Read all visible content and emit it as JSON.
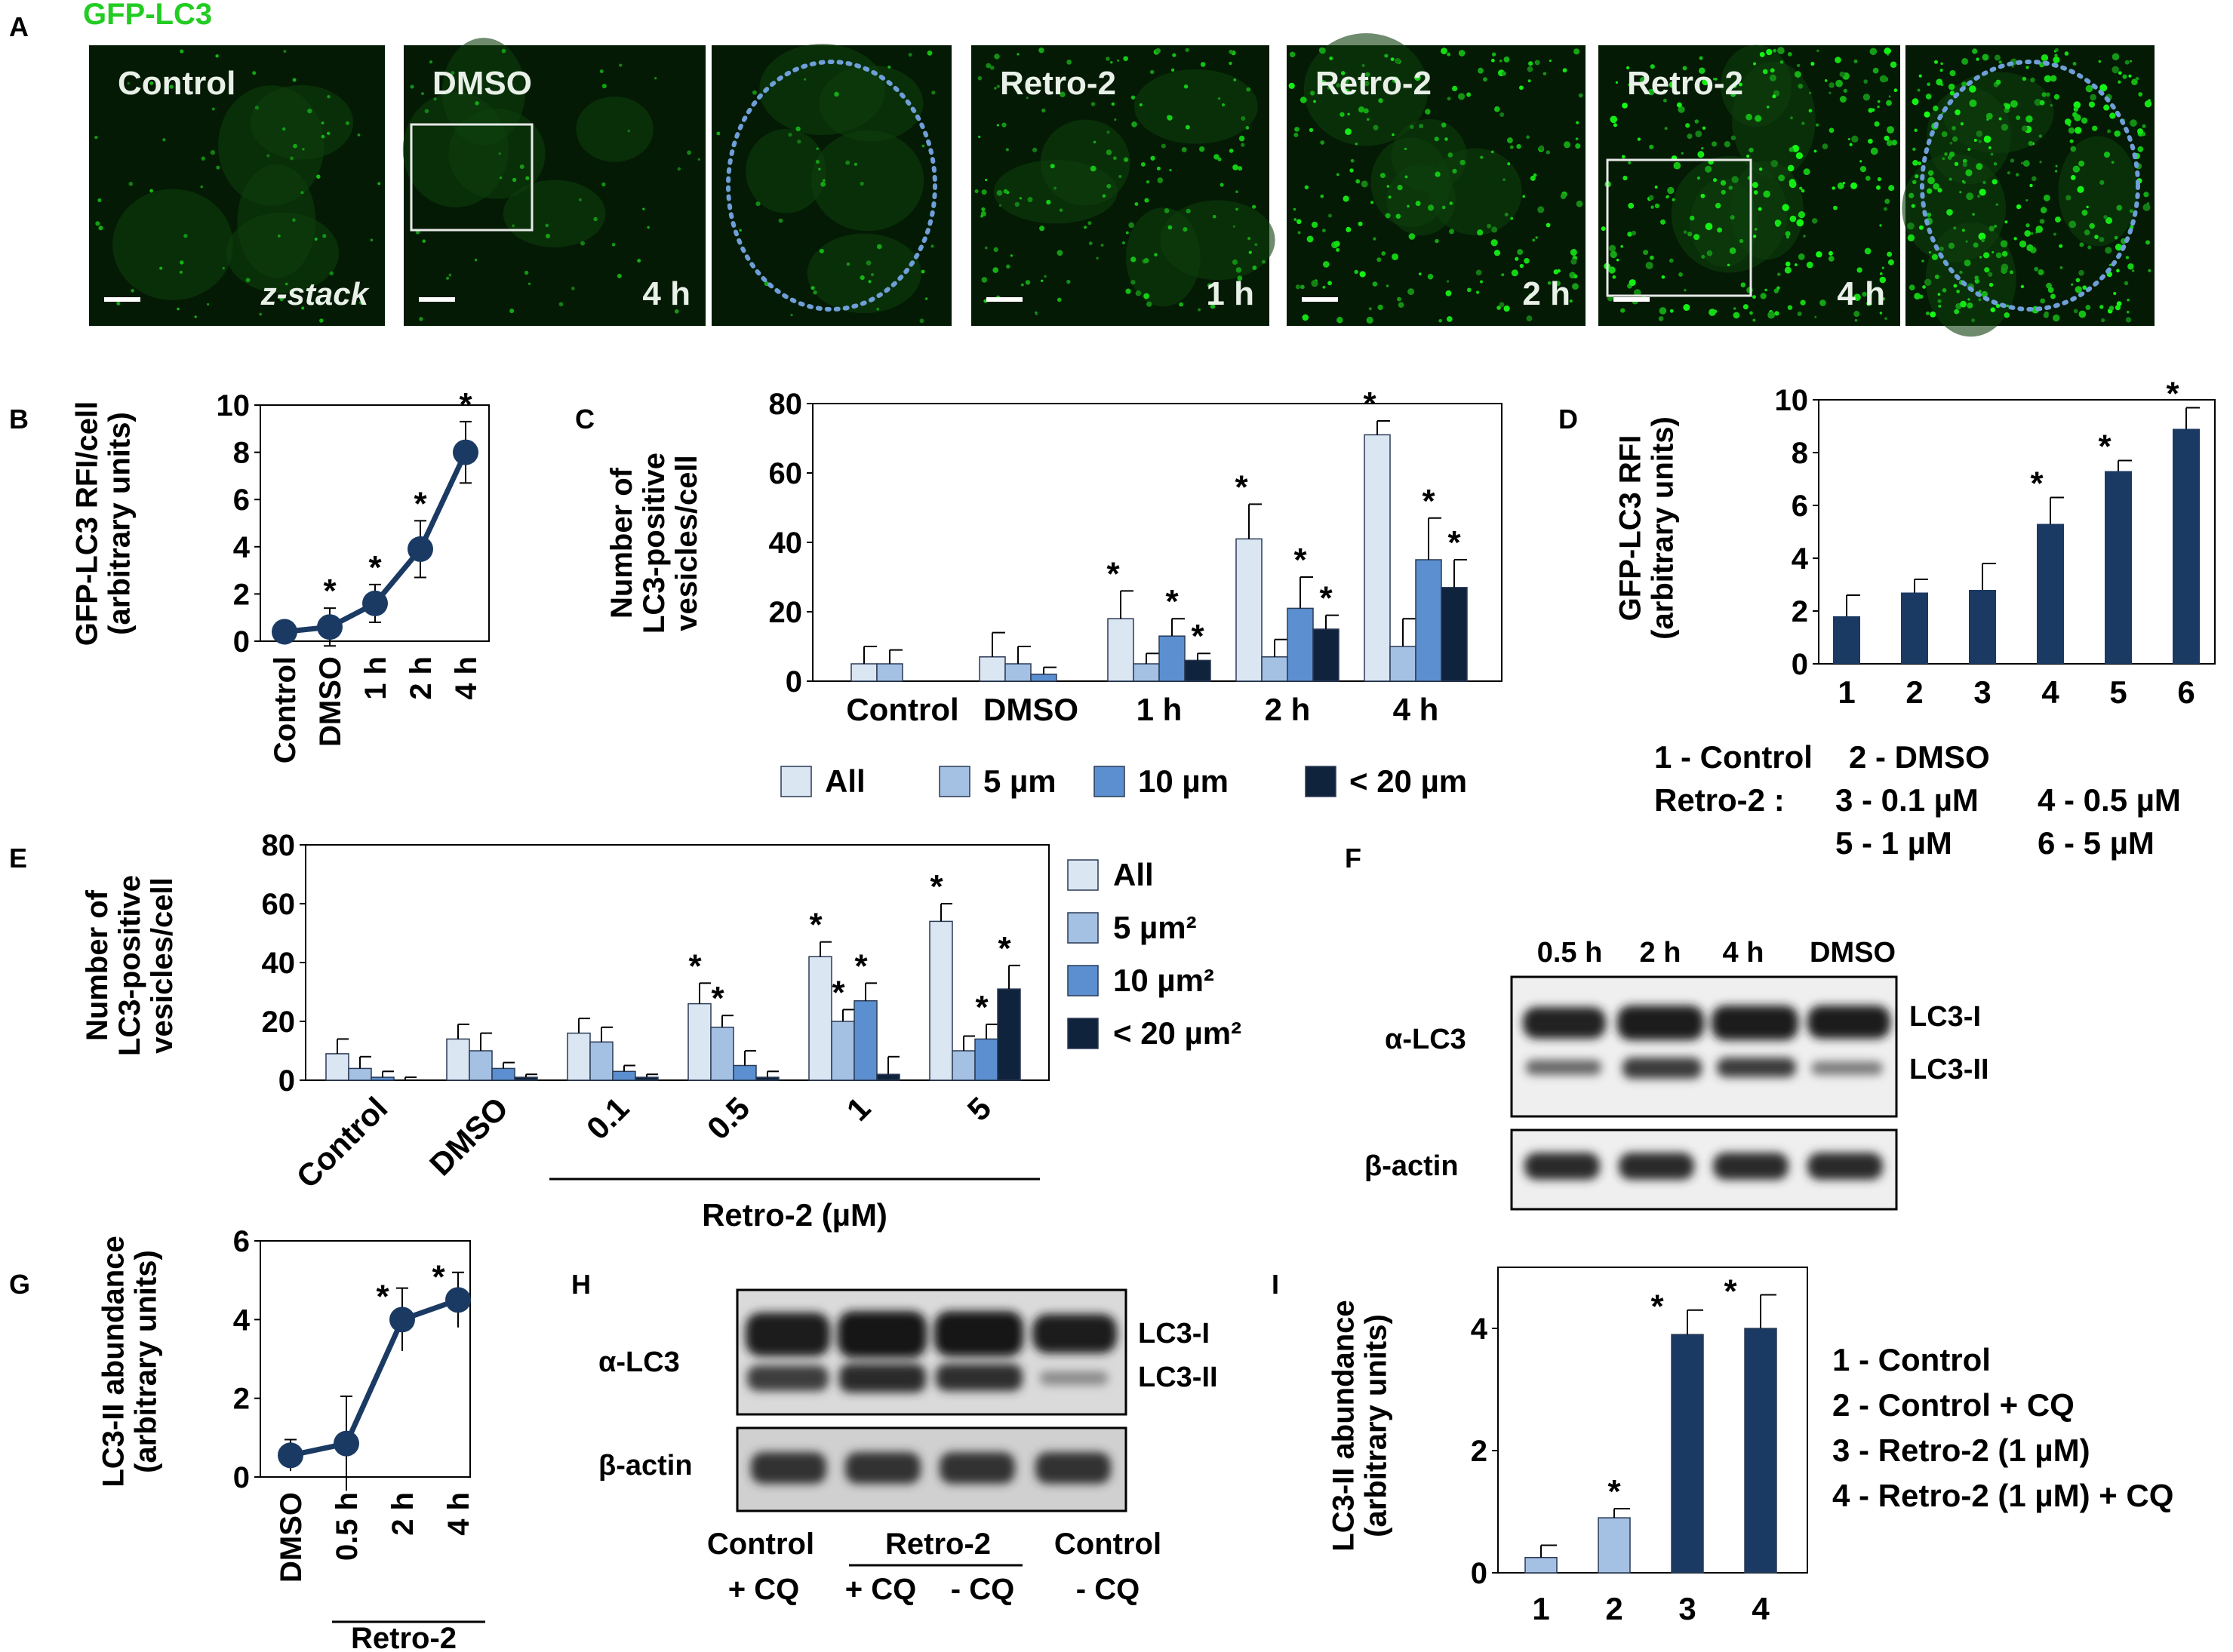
{
  "figure_label": "GFP-LC3",
  "panel_letters": {
    "A": "A",
    "B": "B",
    "C": "C",
    "D": "D",
    "E": "E",
    "F": "F",
    "G": "G",
    "H": "H",
    "I": "I"
  },
  "colors": {
    "navy": "#1b3a63",
    "bar_light": "#dbe6f3",
    "bar_mid": "#a4c1e4",
    "bar_blue": "#5b8fd0",
    "bar_dark": "#10233d",
    "gfp_green": "#22cc22",
    "dotted_outline": "#6f9fd8"
  },
  "panel_a": {
    "images": [
      {
        "label": "Control",
        "time": "",
        "zstack": "z-stack",
        "scalebar": true
      },
      {
        "label": "DMSO",
        "time": "4 h",
        "scalebar": true,
        "inset_box": true
      },
      {
        "label": "",
        "time": "",
        "zoom": true,
        "dotted_cell": true
      },
      {
        "label": "Retro-2",
        "time": "1 h",
        "scalebar": true
      },
      {
        "label": "Retro-2",
        "time": "2 h",
        "scalebar": true
      },
      {
        "label": "Retro-2",
        "time": "4 h",
        "scalebar": true,
        "inset_box": true
      },
      {
        "label": "",
        "time": "",
        "zoom": true,
        "dotted_cell": true
      }
    ]
  },
  "chart_data": [
    {
      "panel": "B",
      "type": "line",
      "ylabel": [
        "GFP-LC3 RFI/cell",
        "(arbitrary units)"
      ],
      "categories": [
        "Control",
        "DMSO",
        "1 h",
        "2 h",
        "4 h"
      ],
      "values": [
        0.4,
        0.6,
        1.6,
        3.9,
        8.0
      ],
      "errors": [
        0.2,
        0.8,
        0.8,
        1.2,
        1.3
      ],
      "significant": [
        false,
        true,
        true,
        true,
        true
      ],
      "ylim": [
        0,
        10
      ],
      "yticks": [
        "0",
        "2",
        "4",
        "6",
        "8",
        "10"
      ]
    },
    {
      "panel": "C",
      "type": "bar",
      "ylabel": [
        "Number of",
        "LC3-positive",
        "vesicles/cell"
      ],
      "categories": [
        "Control",
        "DMSO",
        "1 h",
        "2 h",
        "4 h"
      ],
      "series": [
        {
          "name": "All",
          "values": [
            5,
            7,
            18,
            41,
            71
          ],
          "errors": [
            5,
            7,
            8,
            10,
            4
          ],
          "significant": [
            false,
            false,
            true,
            true,
            true
          ]
        },
        {
          "name": "5 µm",
          "values": [
            5,
            5,
            5,
            7,
            10
          ],
          "errors": [
            4,
            5,
            3,
            5,
            8
          ],
          "significant": [
            false,
            false,
            false,
            false,
            false
          ]
        },
        {
          "name": "10 µm",
          "values": [
            0,
            2,
            13,
            21,
            35
          ],
          "errors": [
            0,
            2,
            5,
            9,
            12
          ],
          "significant": [
            false,
            false,
            true,
            true,
            true
          ]
        },
        {
          "name": "< 20 µm",
          "values": [
            0,
            0,
            6,
            15,
            27
          ],
          "errors": [
            0,
            0,
            2,
            4,
            8
          ],
          "significant": [
            false,
            false,
            true,
            true,
            true
          ]
        }
      ],
      "ylim": [
        0,
        80
      ],
      "yticks": [
        "0",
        "20",
        "40",
        "60",
        "80"
      ]
    },
    {
      "panel": "D",
      "type": "bar",
      "ylabel": [
        "GFP-LC3 RFI",
        "(arbitrary units)"
      ],
      "categories": [
        "1",
        "2",
        "3",
        "4",
        "5",
        "6"
      ],
      "values": [
        1.8,
        2.7,
        2.8,
        5.3,
        7.3,
        8.9
      ],
      "errors": [
        0.8,
        0.5,
        1.0,
        1.0,
        0.4,
        0.8
      ],
      "significant": [
        false,
        false,
        false,
        true,
        true,
        true
      ],
      "ylim": [
        0,
        10
      ],
      "yticks": [
        "0",
        "2",
        "4",
        "6",
        "8",
        "10"
      ],
      "key": [
        "1 - Control",
        "2 - DMSO",
        "Retro-2 :",
        "3 - 0.1 µM",
        "4 - 0.5 µM",
        "5 - 1 µM",
        "6 - 5 µM"
      ]
    },
    {
      "panel": "E",
      "type": "bar",
      "ylabel": [
        "Number of",
        "LC3-positive",
        "vesicles/cell"
      ],
      "categories": [
        "Control",
        "DMSO",
        "0.1",
        "0.5",
        "1",
        "5"
      ],
      "xgroup_label": "Retro-2 (µM)",
      "series": [
        {
          "name": "All",
          "values": [
            9,
            14,
            16,
            26,
            42,
            54
          ],
          "errors": [
            5,
            5,
            5,
            7,
            5,
            6
          ],
          "significant": [
            false,
            false,
            false,
            true,
            true,
            true
          ]
        },
        {
          "name": "5 µm²",
          "values": [
            4,
            10,
            13,
            18,
            20,
            10
          ],
          "errors": [
            4,
            6,
            5,
            4,
            4,
            5
          ],
          "significant": [
            false,
            false,
            false,
            true,
            true,
            false
          ]
        },
        {
          "name": "10 µm²",
          "values": [
            1,
            4,
            3,
            5,
            27,
            14
          ],
          "errors": [
            2,
            2,
            2,
            5,
            6,
            5
          ],
          "significant": [
            false,
            false,
            false,
            false,
            true,
            true
          ]
        },
        {
          "name": "< 20 µm²",
          "values": [
            0,
            1,
            1,
            1,
            2,
            31
          ],
          "errors": [
            1,
            1,
            1,
            2,
            6,
            8
          ],
          "significant": [
            false,
            false,
            false,
            false,
            false,
            true
          ]
        }
      ],
      "ylim": [
        0,
        80
      ],
      "yticks": [
        "0",
        "20",
        "40",
        "60",
        "80"
      ]
    },
    {
      "panel": "G",
      "type": "line",
      "ylabel": [
        "LC3-II abundance",
        "(arbitrary units)"
      ],
      "categories": [
        "DMSO",
        "0.5 h",
        "2 h",
        "4 h"
      ],
      "xgroup_label": "Retro-2",
      "values": [
        0.55,
        0.85,
        4.0,
        4.5
      ],
      "errors": [
        0.4,
        1.2,
        0.8,
        0.7
      ],
      "significant": [
        false,
        false,
        true,
        true
      ],
      "ylim": [
        0,
        6
      ],
      "yticks": [
        "0",
        "2",
        "4",
        "6"
      ]
    },
    {
      "panel": "I",
      "type": "bar",
      "ylabel": [
        "LC3-II abundance",
        "(arbitrary units)"
      ],
      "categories": [
        "1",
        "2",
        "3",
        "4"
      ],
      "values": [
        0.25,
        0.9,
        3.9,
        4.0
      ],
      "errors": [
        0.2,
        0.15,
        0.4,
        0.55
      ],
      "significant": [
        false,
        true,
        true,
        true
      ],
      "ylim": [
        0,
        5
      ],
      "yticks": [
        "0",
        "2",
        "4"
      ],
      "key": [
        "1 - Control",
        "2 - Control + CQ",
        "3 - Retro-2 (1 µM)",
        "4 - Retro-2 (1 µM) + CQ"
      ]
    }
  ],
  "blot_f": {
    "lanes": [
      "0.5 h",
      "2 h",
      "4 h",
      "DMSO"
    ],
    "row_labels": [
      "α-LC3",
      "β-actin"
    ],
    "band_labels": [
      "LC3-I",
      "LC3-II"
    ]
  },
  "blot_h": {
    "row_labels": [
      "α-LC3",
      "β-actin"
    ],
    "band_labels": [
      "LC3-I",
      "LC3-II"
    ],
    "lane_labels": [
      "Control",
      "+ CQ",
      "Retro-2",
      "+ CQ",
      "- CQ",
      "Control",
      "- CQ"
    ]
  },
  "star": "*"
}
